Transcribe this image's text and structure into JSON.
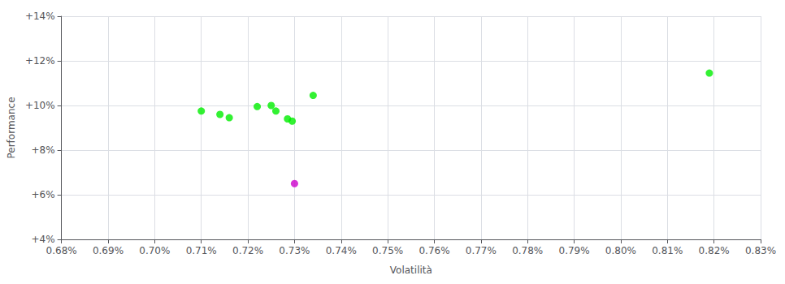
{
  "chart_data": {
    "type": "scatter",
    "xlabel": "Volatilità",
    "ylabel": "Performance",
    "xlim": [
      0.0068,
      0.0083
    ],
    "ylim": [
      0.04,
      0.14
    ],
    "xticks": [
      {
        "value": 0.0068,
        "label": "0.68%"
      },
      {
        "value": 0.0069,
        "label": "0.69%"
      },
      {
        "value": 0.007,
        "label": "0.70%"
      },
      {
        "value": 0.0071,
        "label": "0.71%"
      },
      {
        "value": 0.0072,
        "label": "0.72%"
      },
      {
        "value": 0.0073,
        "label": "0.73%"
      },
      {
        "value": 0.0074,
        "label": "0.74%"
      },
      {
        "value": 0.0075,
        "label": "0.75%"
      },
      {
        "value": 0.0076,
        "label": "0.76%"
      },
      {
        "value": 0.0077,
        "label": "0.77%"
      },
      {
        "value": 0.0078,
        "label": "0.78%"
      },
      {
        "value": 0.0079,
        "label": "0.79%"
      },
      {
        "value": 0.008,
        "label": "0.80%"
      },
      {
        "value": 0.0081,
        "label": "0.81%"
      },
      {
        "value": 0.0082,
        "label": "0.82%"
      },
      {
        "value": 0.0083,
        "label": "0.83%"
      }
    ],
    "yticks": [
      {
        "value": 0.04,
        "label": "+4%"
      },
      {
        "value": 0.06,
        "label": "+6%"
      },
      {
        "value": 0.08,
        "label": "+8%"
      },
      {
        "value": 0.1,
        "label": "+10%"
      },
      {
        "value": 0.12,
        "label": "+12%"
      },
      {
        "value": 0.14,
        "label": "+14%"
      }
    ],
    "grid": true,
    "series": [
      {
        "color": "#00ee00",
        "x": [
          0.0071,
          0.00714,
          0.00716,
          0.00722,
          0.00725,
          0.00726,
          0.007285,
          0.007295,
          0.00734,
          0.00819
        ],
        "values": [
          0.0975,
          0.096,
          0.0945,
          0.0995,
          0.1,
          0.0975,
          0.094,
          0.093,
          0.1045,
          0.1145
        ]
      },
      {
        "color": "#cc00cc",
        "x": [
          0.0073
        ],
        "values": [
          0.065
        ]
      }
    ]
  }
}
